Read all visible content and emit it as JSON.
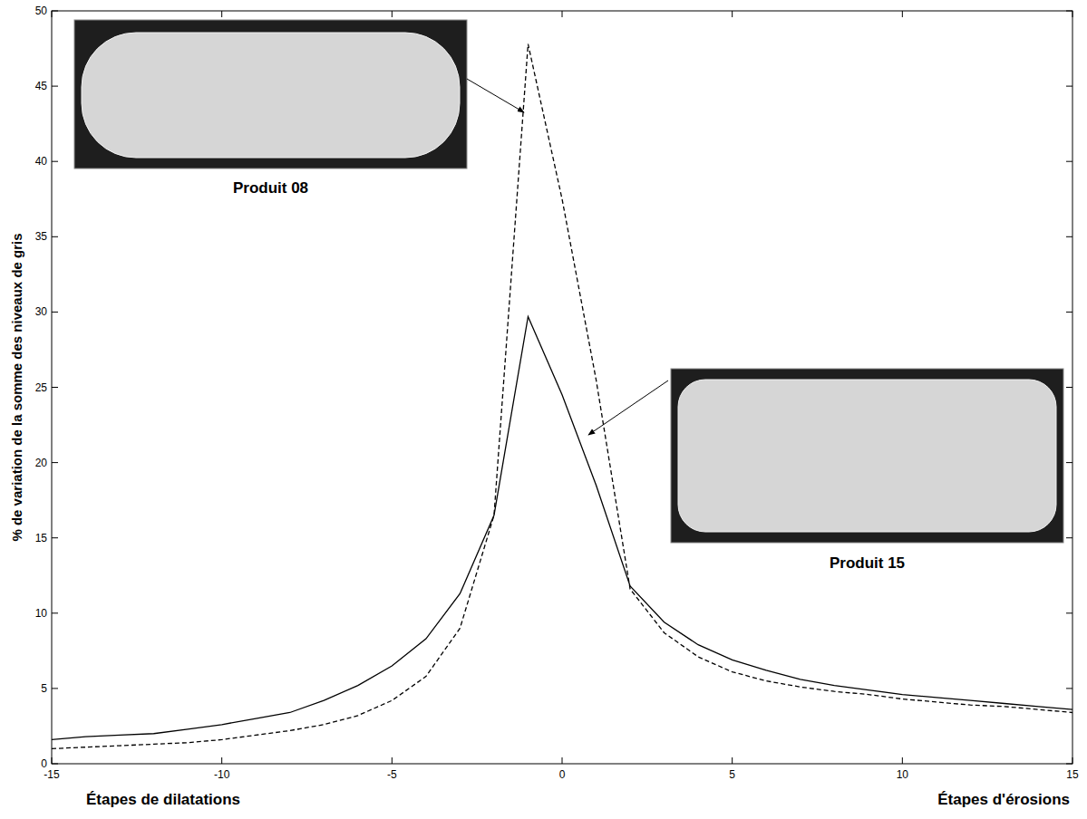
{
  "chart_data": {
    "type": "line",
    "ylabel": "% de variation de la somme des niveaux de gris",
    "x_label_left": "Étapes de dilatations",
    "x_label_right": "Étapes d'érosions",
    "x": [
      -15,
      -14,
      -13,
      -12,
      -11,
      -10,
      -9,
      -8,
      -7,
      -6,
      -5,
      -4,
      -3,
      -2,
      -1,
      0,
      1,
      2,
      3,
      4,
      5,
      6,
      7,
      8,
      9,
      10,
      11,
      12,
      13,
      14,
      15
    ],
    "series": [
      {
        "name": "Produit 08",
        "color": "#000000",
        "line_style": "dashed",
        "values": [
          1.0,
          1.1,
          1.2,
          1.3,
          1.4,
          1.6,
          1.9,
          2.2,
          2.6,
          3.2,
          4.2,
          5.8,
          9.0,
          16.5,
          47.8,
          37.5,
          25.5,
          11.6,
          8.7,
          7.1,
          6.1,
          5.5,
          5.1,
          4.8,
          4.6,
          4.3,
          4.1,
          3.9,
          3.8,
          3.6,
          3.4
        ]
      },
      {
        "name": "Produit 15",
        "color": "#000000",
        "line_style": "solid",
        "values": [
          1.6,
          1.8,
          1.9,
          2.0,
          2.3,
          2.6,
          3.0,
          3.4,
          4.2,
          5.2,
          6.5,
          8.3,
          11.3,
          16.5,
          29.7,
          24.5,
          18.5,
          11.8,
          9.4,
          7.9,
          6.9,
          6.2,
          5.6,
          5.2,
          4.9,
          4.6,
          4.4,
          4.2,
          4.0,
          3.8,
          3.6
        ]
      }
    ],
    "xlim": [
      -15,
      15
    ],
    "ylim": [
      0,
      50
    ],
    "xticks": [
      -15,
      -10,
      -5,
      0,
      5,
      10,
      15
    ],
    "yticks": [
      0,
      5,
      10,
      15,
      20,
      25,
      30,
      35,
      40,
      45,
      50
    ],
    "grid": false
  }
}
